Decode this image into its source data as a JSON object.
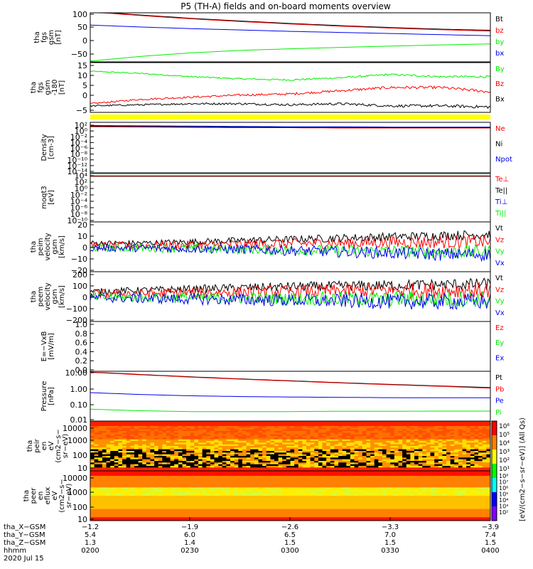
{
  "title": "P5 (TH-A) fields and on-board moments overview",
  "colors": {
    "black": "#000000",
    "red": "#ff0000",
    "green": "#00ee00",
    "blue": "#0000ee",
    "yellow": "#ffff00"
  },
  "chart_data": [
    {
      "type": "line",
      "panel": "fgs_gsm",
      "ylabel": [
        "tha",
        "fgs",
        "gsm",
        "[nT]"
      ],
      "yticks": [
        "100",
        "50",
        "0",
        "−50"
      ],
      "ylim": [
        -75,
        105
      ],
      "series": [
        {
          "name": "Bt",
          "color": "black",
          "values": [
            110,
            97,
            85,
            75,
            66,
            58,
            51,
            45,
            41
          ]
        },
        {
          "name": "bz",
          "color": "red",
          "values": [
            108,
            95,
            83,
            73,
            64,
            56,
            49,
            43,
            38
          ]
        },
        {
          "name": "by",
          "color": "green",
          "values": [
            -72,
            -55,
            -42,
            -33,
            -27,
            -22,
            -17,
            -13,
            -9
          ]
        },
        {
          "name": "bx",
          "color": "blue",
          "values": [
            60,
            53,
            47,
            42,
            37,
            33,
            29,
            25,
            21
          ]
        }
      ]
    },
    {
      "type": "line",
      "panel": "fgs_gsm_180",
      "ylabel": [
        "tha",
        "fgs",
        "gsm",
        "-180",
        "[nT]"
      ],
      "yticks": [
        "15",
        "10",
        "5",
        "0",
        "−5"
      ],
      "ylim": [
        -7,
        16
      ],
      "series": [
        {
          "name": "By",
          "color": "green",
          "values": [
            12,
            11,
            9.5,
            8.5,
            8,
            9,
            10.5,
            9.5,
            9.5
          ]
        },
        {
          "name": "Bz",
          "color": "red",
          "values": [
            -3,
            -1,
            0,
            1,
            1.5,
            3,
            4.5,
            4.5,
            2.5
          ]
        },
        {
          "name": "Bx",
          "color": "black",
          "values": [
            -4,
            -3.5,
            -3,
            -3,
            -3.5,
            -3,
            -4,
            -4,
            -4.5
          ]
        }
      ]
    },
    {
      "type": "line",
      "panel": "density",
      "ylabel": [
        "Density",
        "[cm-3]"
      ],
      "yticks": [
        "10²",
        "10⁰",
        "10⁻²",
        "10⁻⁴",
        "10⁻⁶",
        "10⁻⁸",
        "10⁻¹⁰",
        "10⁻¹²",
        "10⁻¹⁴"
      ],
      "ylim_log": [
        -14,
        2
      ],
      "series": [
        {
          "name": "Ne",
          "color": "red",
          "log_values": [
            0.6,
            0.5,
            0.4,
            0.3,
            0.3,
            0.2,
            0.2,
            0.2,
            0.2
          ]
        },
        {
          "name": "Ni",
          "color": "black",
          "log_values": [
            0.8,
            0.7,
            0.6,
            0.5,
            0.4,
            0.4,
            0.3,
            0.3,
            0.3
          ]
        },
        {
          "name": "Npot",
          "color": "blue",
          "log_values": [
            1.0,
            0.9,
            0.8,
            0.7,
            0.6,
            0.6,
            0.5,
            0.5,
            0.5
          ]
        }
      ]
    },
    {
      "type": "line",
      "panel": "temperature",
      "ylabel": [
        "moqt3",
        "[eV]"
      ],
      "yticks": [
        "10⁴",
        "10²",
        "10⁰",
        "10⁻²",
        "10⁻⁴",
        "10⁻⁶",
        "10⁻⁸",
        "10⁻¹⁰"
      ],
      "ylim_log": [
        -10,
        4
      ],
      "series": [
        {
          "name": "Te⊥",
          "color": "red",
          "log_values": [
            3.0,
            3.0,
            3.0,
            3.0,
            3.0,
            3.0,
            3.0,
            3.0,
            3.0
          ]
        },
        {
          "name": "Te||",
          "color": "black",
          "log_values": [
            3.1,
            3.1,
            3.1,
            3.1,
            3.1,
            3.1,
            3.1,
            3.1,
            3.1
          ]
        },
        {
          "name": "Ti⊥",
          "color": "blue",
          "log_values": [
            3.8,
            3.8,
            3.8,
            3.8,
            3.8,
            3.8,
            3.8,
            3.8,
            3.8
          ]
        },
        {
          "name": "Ti||",
          "color": "green",
          "log_values": [
            3.75,
            3.75,
            3.75,
            3.75,
            3.75,
            3.75,
            3.75,
            3.75,
            3.75
          ]
        }
      ]
    },
    {
      "type": "line",
      "panel": "peim_velocity",
      "ylabel": [
        "tha",
        "peim",
        "velocity",
        "gsm",
        "[km/s]"
      ],
      "yticks": [
        "20",
        "10",
        "0",
        "−10",
        "−20"
      ],
      "ylim": [
        -20,
        20
      ],
      "series": [
        {
          "name": "Vt",
          "color": "black",
          "values": [
            3,
            3,
            4,
            5,
            6,
            7,
            8,
            9,
            10
          ]
        },
        {
          "name": "Vz",
          "color": "red",
          "values": [
            1,
            1,
            1.5,
            2,
            2.5,
            3,
            3.5,
            4,
            4
          ]
        },
        {
          "name": "Vy",
          "color": "green",
          "values": [
            -1,
            -1,
            -1.5,
            -2,
            -2.5,
            -3,
            -3.5,
            -4,
            -4
          ]
        },
        {
          "name": "Vx",
          "color": "blue",
          "values": [
            -1,
            -1,
            -1.5,
            -2,
            -3,
            -4,
            -5,
            -6,
            -6
          ]
        }
      ]
    },
    {
      "type": "line",
      "panel": "peem_velocity",
      "ylabel": [
        "tha",
        "peem",
        "velocity",
        "gsm",
        "[km/s]"
      ],
      "yticks": [
        "200",
        "100",
        "0",
        "−100",
        "−200"
      ],
      "ylim": [
        -200,
        200
      ],
      "series": [
        {
          "name": "Vt",
          "color": "black",
          "values": [
            40,
            50,
            60,
            70,
            80,
            85,
            90,
            95,
            100
          ]
        },
        {
          "name": "Vz",
          "color": "red",
          "values": [
            20,
            25,
            30,
            35,
            40,
            45,
            50,
            50,
            50
          ]
        },
        {
          "name": "Vy",
          "color": "green",
          "values": [
            -5,
            -8,
            -10,
            -12,
            -15,
            -18,
            -20,
            -20,
            -20
          ]
        },
        {
          "name": "Vx",
          "color": "blue",
          "values": [
            -10,
            -15,
            -20,
            -25,
            -30,
            -35,
            -40,
            -40,
            -40
          ]
        }
      ]
    },
    {
      "type": "line",
      "panel": "efield",
      "ylabel": [
        "E=−VxB",
        "[mV/m]"
      ],
      "yticks": [
        "1.0",
        "0.8",
        "0.6",
        "0.4",
        "0.2",
        "0.0"
      ],
      "ylim": [
        0,
        1
      ],
      "series": [
        {
          "name": "Ez",
          "color": "red",
          "values": []
        },
        {
          "name": "Ey",
          "color": "green",
          "values": []
        },
        {
          "name": "Ex",
          "color": "blue",
          "values": []
        }
      ]
    },
    {
      "type": "line",
      "panel": "pressure",
      "ylabel": [
        "Pressure",
        "[nPa]"
      ],
      "yticks": [
        "10.00",
        "1.00",
        "0.10",
        "0.01"
      ],
      "ylim_log": [
        -2.1,
        1.05
      ],
      "series": [
        {
          "name": "Pt",
          "color": "black",
          "log_values": [
            1.0,
            0.85,
            0.7,
            0.57,
            0.45,
            0.33,
            0.22,
            0.12,
            0.02
          ]
        },
        {
          "name": "Pb",
          "color": "red",
          "log_values": [
            0.98,
            0.83,
            0.68,
            0.55,
            0.43,
            0.31,
            0.2,
            0.1,
            -0.02
          ]
        },
        {
          "name": "Pe",
          "color": "blue",
          "log_values": [
            -0.3,
            -0.42,
            -0.5,
            -0.55,
            -0.58,
            -0.6,
            -0.62,
            -0.63,
            -0.63
          ]
        },
        {
          "name": "Pi",
          "color": "green",
          "log_values": [
            -1.35,
            -1.45,
            -1.5,
            -1.5,
            -1.5,
            -1.48,
            -1.48,
            -1.47,
            -1.47
          ]
        }
      ]
    },
    {
      "type": "heatmap",
      "panel": "peir_eflux",
      "ylabel": [
        "tha",
        "peir",
        "en",
        "eV",
        "(cm2−s−",
        "sr−eV)"
      ],
      "yticks": [
        "10000",
        "1000",
        "100",
        "10"
      ]
    },
    {
      "type": "heatmap",
      "panel": "peer_eflux",
      "ylabel": [
        "tha",
        "peer",
        "en",
        "eflux",
        "eV",
        "(cm2−s−",
        "sr−eV)"
      ],
      "yticks": [
        "10000",
        "1000",
        "100",
        "10"
      ]
    }
  ],
  "colorbar": {
    "ticks": [
      "10⁶",
      "10⁵",
      "10⁴",
      "10³",
      "10²",
      "10¹"
    ],
    "ticks2": [
      "10⁸",
      "10⁷",
      "10⁶",
      "10⁵",
      "10⁴",
      "10³",
      "10²"
    ],
    "label": "[eV/(cm2−s−sr−eV)] (All Qs)"
  },
  "xaxis": {
    "rows": [
      {
        "label": "tha_X−GSM",
        "values": [
          "−1.2",
          "−1.9",
          "−2.6",
          "−3.3",
          "−3.9"
        ]
      },
      {
        "label": "tha_Y−GSM",
        "values": [
          "5.4",
          "6.0",
          "6.5",
          "7.0",
          "7.4"
        ]
      },
      {
        "label": "tha_Z−GSM",
        "values": [
          "1.3",
          "1.4",
          "1.5",
          "1.5",
          "1.5"
        ]
      },
      {
        "label": "hhmm",
        "values": [
          "0200",
          "0230",
          "0300",
          "0330",
          "0400"
        ]
      }
    ],
    "date": "2020 Jul 15"
  }
}
